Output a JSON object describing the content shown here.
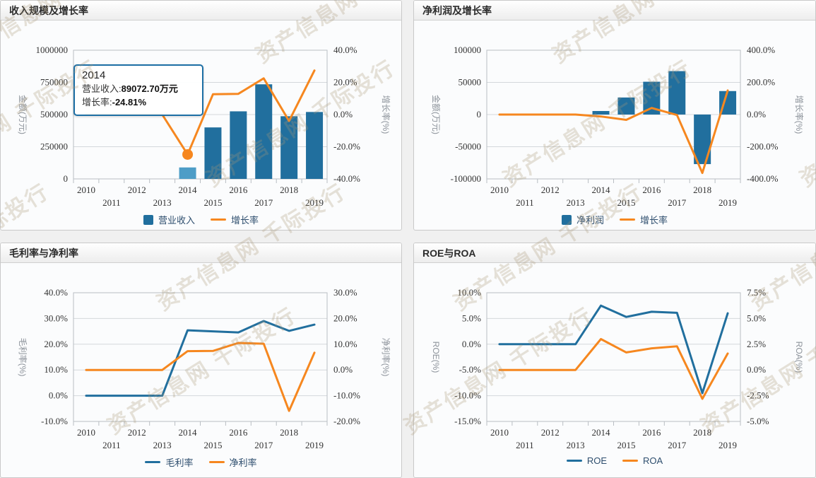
{
  "watermark": {
    "text": "资产信息网 千际投行"
  },
  "chart_data": [
    {
      "id": "revenue-growth",
      "type": "bar",
      "title": "收入规模及增长率",
      "categories": [
        "2010",
        "2011",
        "2012",
        "2013",
        "2014",
        "2015",
        "2016",
        "2017",
        "2018",
        "2019"
      ],
      "left_axis": {
        "title": "金额(万元)",
        "min": 0,
        "max": 1000000,
        "tick_labels": [
          "1000000",
          "750000",
          "500000",
          "250000",
          "0"
        ]
      },
      "right_axis": {
        "title": "增长率(%)",
        "min": -40,
        "max": 40,
        "tick_labels": [
          "40.0%",
          "20.0%",
          "0.0%",
          "-20.0%",
          "-40.0%"
        ]
      },
      "series": [
        {
          "name": "营业收入",
          "type": "bar",
          "axis": "left",
          "color": "#216f9e",
          "values": [
            null,
            null,
            null,
            null,
            89072.7,
            400000,
            525000,
            735000,
            487000,
            520000
          ],
          "highlight_index": 4,
          "highlight_color": "#4d9dc7"
        },
        {
          "name": "增长率",
          "type": "line",
          "axis": "right",
          "color": "#f6871f",
          "values": [
            0,
            0,
            0,
            0,
            -24.81,
            12.6,
            12.9,
            22.5,
            -4,
            27.4
          ],
          "bullet_index": 4
        }
      ],
      "tooltip": {
        "title": "2014",
        "rows": [
          {
            "label": "营业收入:",
            "value": "89072.70万元"
          },
          {
            "label": "增长率:",
            "value": "-24.81%"
          }
        ]
      }
    },
    {
      "id": "netprofit-growth",
      "type": "bar",
      "title": "净利润及增长率",
      "categories": [
        "2010",
        "2011",
        "2012",
        "2013",
        "2014",
        "2015",
        "2016",
        "2017",
        "2018",
        "2019"
      ],
      "left_axis": {
        "title": "金额(万元)",
        "min": -100000,
        "max": 100000,
        "tick_labels": [
          "100000",
          "50000",
          "0",
          "-50000",
          "-100000"
        ]
      },
      "right_axis": {
        "title": "增长率(%)",
        "min": -400,
        "max": 400,
        "tick_labels": [
          "400.0%",
          "200.0%",
          "0.0%",
          "-200.0%",
          "-400.0%"
        ]
      },
      "series": [
        {
          "name": "净利润",
          "type": "bar",
          "axis": "left",
          "color": "#216f9e",
          "values": [
            null,
            null,
            null,
            null,
            5500,
            26500,
            51000,
            67500,
            -77000,
            36500
          ]
        },
        {
          "name": "增长率",
          "type": "line",
          "axis": "right",
          "color": "#f6871f",
          "values": [
            0,
            0,
            0,
            0,
            -12,
            -33,
            41,
            -3,
            -363,
            150
          ]
        }
      ]
    },
    {
      "id": "gross-net-margin",
      "type": "line",
      "title": "毛利率与净利率",
      "categories": [
        "2010",
        "2011",
        "2012",
        "2013",
        "2014",
        "2015",
        "2016",
        "2017",
        "2018",
        "2019"
      ],
      "left_axis": {
        "title": "毛利率(%)",
        "min": -10,
        "max": 40,
        "tick_labels": [
          "40.0%",
          "30.0%",
          "20.0%",
          "10.0%",
          "0.0%",
          "-10.0%"
        ]
      },
      "right_axis": {
        "title": "净利率(%)",
        "min": -20,
        "max": 30,
        "tick_labels": [
          "30.0%",
          "20.0%",
          "10.0%",
          "0.0%",
          "-10.0%",
          "-20.0%"
        ]
      },
      "series": [
        {
          "name": "毛利率",
          "type": "line",
          "axis": "left",
          "color": "#216f9e",
          "values": [
            0,
            0,
            0,
            0,
            25.4,
            25.0,
            24.6,
            29.0,
            25.2,
            27.6
          ]
        },
        {
          "name": "净利率",
          "type": "line",
          "axis": "right",
          "color": "#f6871f",
          "values": [
            0,
            0,
            0,
            0,
            7.3,
            7.4,
            10.5,
            10.2,
            -15.9,
            6.7
          ]
        }
      ]
    },
    {
      "id": "roe-roa",
      "type": "line",
      "title": "ROE与ROA",
      "categories": [
        "2010",
        "2011",
        "2012",
        "2013",
        "2014",
        "2015",
        "2016",
        "2017",
        "2018",
        "2019"
      ],
      "left_axis": {
        "title": "ROE(%)",
        "min": -15,
        "max": 10,
        "tick_labels": [
          "10.0%",
          "5.0%",
          "0.0%",
          "-5.0%",
          "-10.0%",
          "-15.0%"
        ]
      },
      "right_axis": {
        "title": "ROA(%)",
        "min": -5,
        "max": 7.5,
        "tick_labels": [
          "7.5%",
          "5.0%",
          "2.5%",
          "0.0%",
          "-2.5%",
          "-5.0%"
        ]
      },
      "series": [
        {
          "name": "ROE",
          "type": "line",
          "axis": "left",
          "color": "#216f9e",
          "values": [
            0,
            0,
            0,
            0,
            7.5,
            5.3,
            6.3,
            6.1,
            -9.5,
            6.0
          ]
        },
        {
          "name": "ROA",
          "type": "line",
          "axis": "right",
          "color": "#f6871f",
          "values": [
            0,
            0,
            0,
            0,
            3.0,
            1.7,
            2.1,
            2.3,
            -2.8,
            1.6
          ]
        }
      ]
    }
  ],
  "style": {
    "grid_color": "#d4d8db",
    "axis_color": "#b9bec3",
    "tick_text_color": "#333333"
  }
}
